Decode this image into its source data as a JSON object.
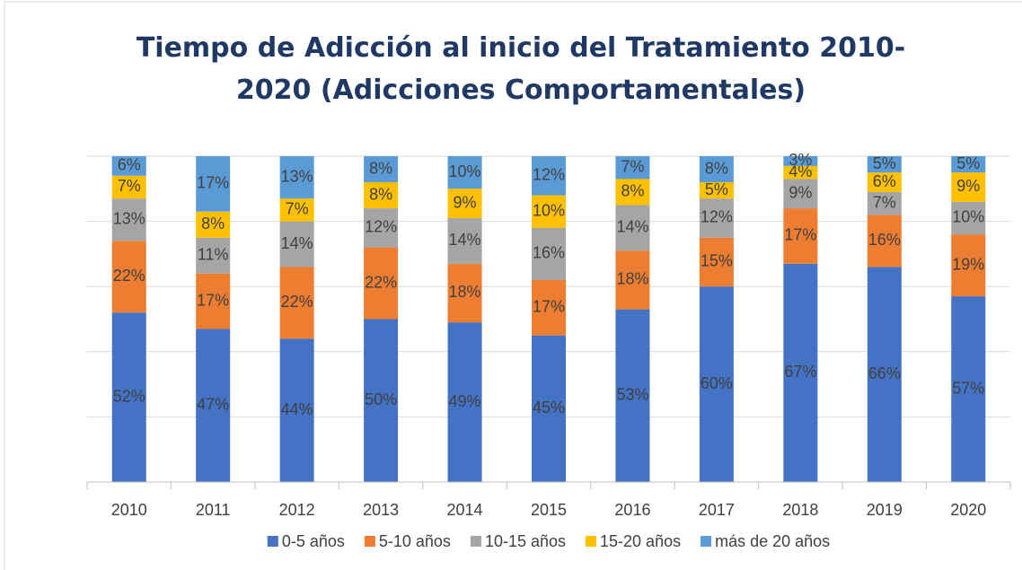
{
  "chart_data": {
    "type": "stacked_bar",
    "title": "Tiempo de Adicción al inicio del Tratamiento 2010-2020 (Adicciones Comportamentales)",
    "categories": [
      "2010",
      "2011",
      "2012",
      "2013",
      "2014",
      "2015",
      "2016",
      "2017",
      "2018",
      "2019",
      "2020"
    ],
    "ylim": [
      0,
      100
    ],
    "yticks": [
      0,
      20,
      40,
      60,
      80,
      100
    ],
    "grid": true,
    "legend": "bottom",
    "series": [
      {
        "name": "0-5 años",
        "color": "#4472c4",
        "values": [
          52,
          47,
          44,
          50,
          49,
          45,
          53,
          60,
          67,
          66,
          57
        ],
        "value_labels": [
          "52%",
          "47%",
          "44%",
          "50%",
          "49%",
          "45%",
          "53%",
          "60%",
          "67%",
          "66%",
          "57%"
        ]
      },
      {
        "name": "5-10 años",
        "color": "#ed7d31",
        "values": [
          22,
          17,
          22,
          22,
          18,
          17,
          18,
          15,
          17,
          16,
          19
        ],
        "value_labels": [
          "22%",
          "17%",
          "22%",
          "22%",
          "18%",
          "17%",
          "18%",
          "15%",
          "17%",
          "16%",
          "19%"
        ]
      },
      {
        "name": "10-15 años",
        "color": "#a5a5a5",
        "values": [
          13,
          11,
          14,
          12,
          14,
          16,
          14,
          12,
          9,
          7,
          10
        ],
        "value_labels": [
          "13%",
          "11%",
          "14%",
          "12%",
          "14%",
          "16%",
          "14%",
          "12%",
          "9%",
          "7%",
          "10%"
        ]
      },
      {
        "name": "15-20 años",
        "color": "#ffc000",
        "values": [
          7,
          8,
          7,
          8,
          9,
          10,
          8,
          5,
          4,
          6,
          9
        ],
        "value_labels": [
          "7%",
          "8%",
          "7%",
          "8%",
          "9%",
          "10%",
          "8%",
          "5%",
          "4%",
          "6%",
          "9%"
        ]
      },
      {
        "name": "más de 20 años",
        "color": "#5b9bd5",
        "values": [
          6,
          17,
          13,
          8,
          10,
          12,
          7,
          8,
          3,
          5,
          5
        ],
        "value_labels": [
          "6%",
          "17%",
          "13%",
          "8%",
          "10%",
          "12%",
          "7%",
          "8%",
          "3%",
          "5%",
          "5%"
        ]
      }
    ]
  }
}
